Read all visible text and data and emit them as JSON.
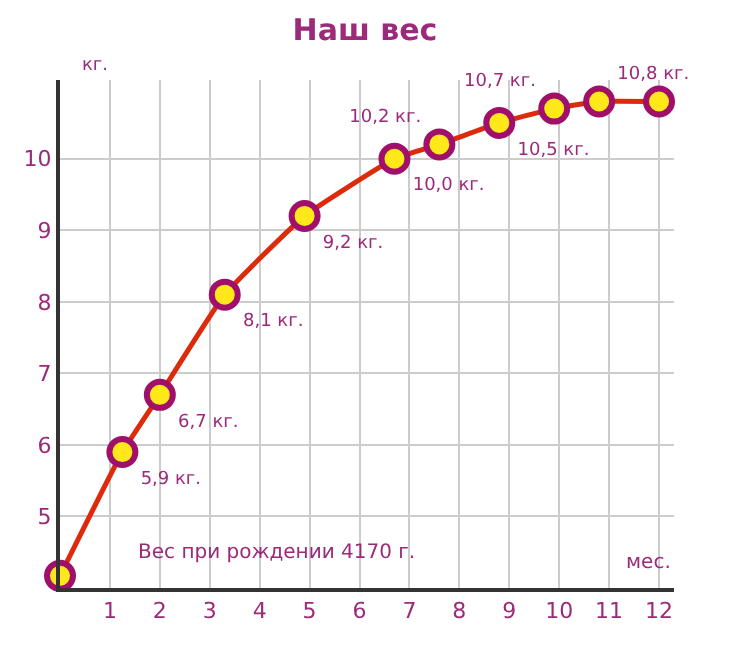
{
  "chart_data": {
    "type": "line",
    "title": "Наш вес",
    "xlabel": "мес.",
    "ylabel": "кг.",
    "x": [
      0,
      1.25,
      2,
      3.3,
      4.9,
      6.7,
      7.6,
      8.8,
      9.9,
      10.8,
      12
    ],
    "series": [
      {
        "color": "#dd2a0a",
        "values": [
          4.17,
          5.9,
          6.7,
          8.1,
          9.2,
          10.0,
          10.2,
          10.5,
          10.7,
          10.8,
          10.8
        ],
        "value_labels": [
          null,
          "5,9 кг.",
          "6,7 кг.",
          "8,1 кг.",
          "9,2 кг.",
          "10,0 кг.",
          "10,2 кг.",
          "10,5 кг.",
          "10,7 кг.",
          "10,8 кг.",
          null
        ]
      }
    ],
    "annotations": [
      "Вес при рождении 4170 г."
    ],
    "xlim": [
      0,
      12.3
    ],
    "ylim": [
      4,
      11.1
    ],
    "xticks": [
      1,
      2,
      3,
      4,
      5,
      6,
      7,
      8,
      9,
      10,
      11,
      12
    ],
    "yticks": [
      5,
      6,
      7,
      8,
      9,
      10
    ],
    "grid": true,
    "marker": "circle",
    "line_style": "solid"
  }
}
